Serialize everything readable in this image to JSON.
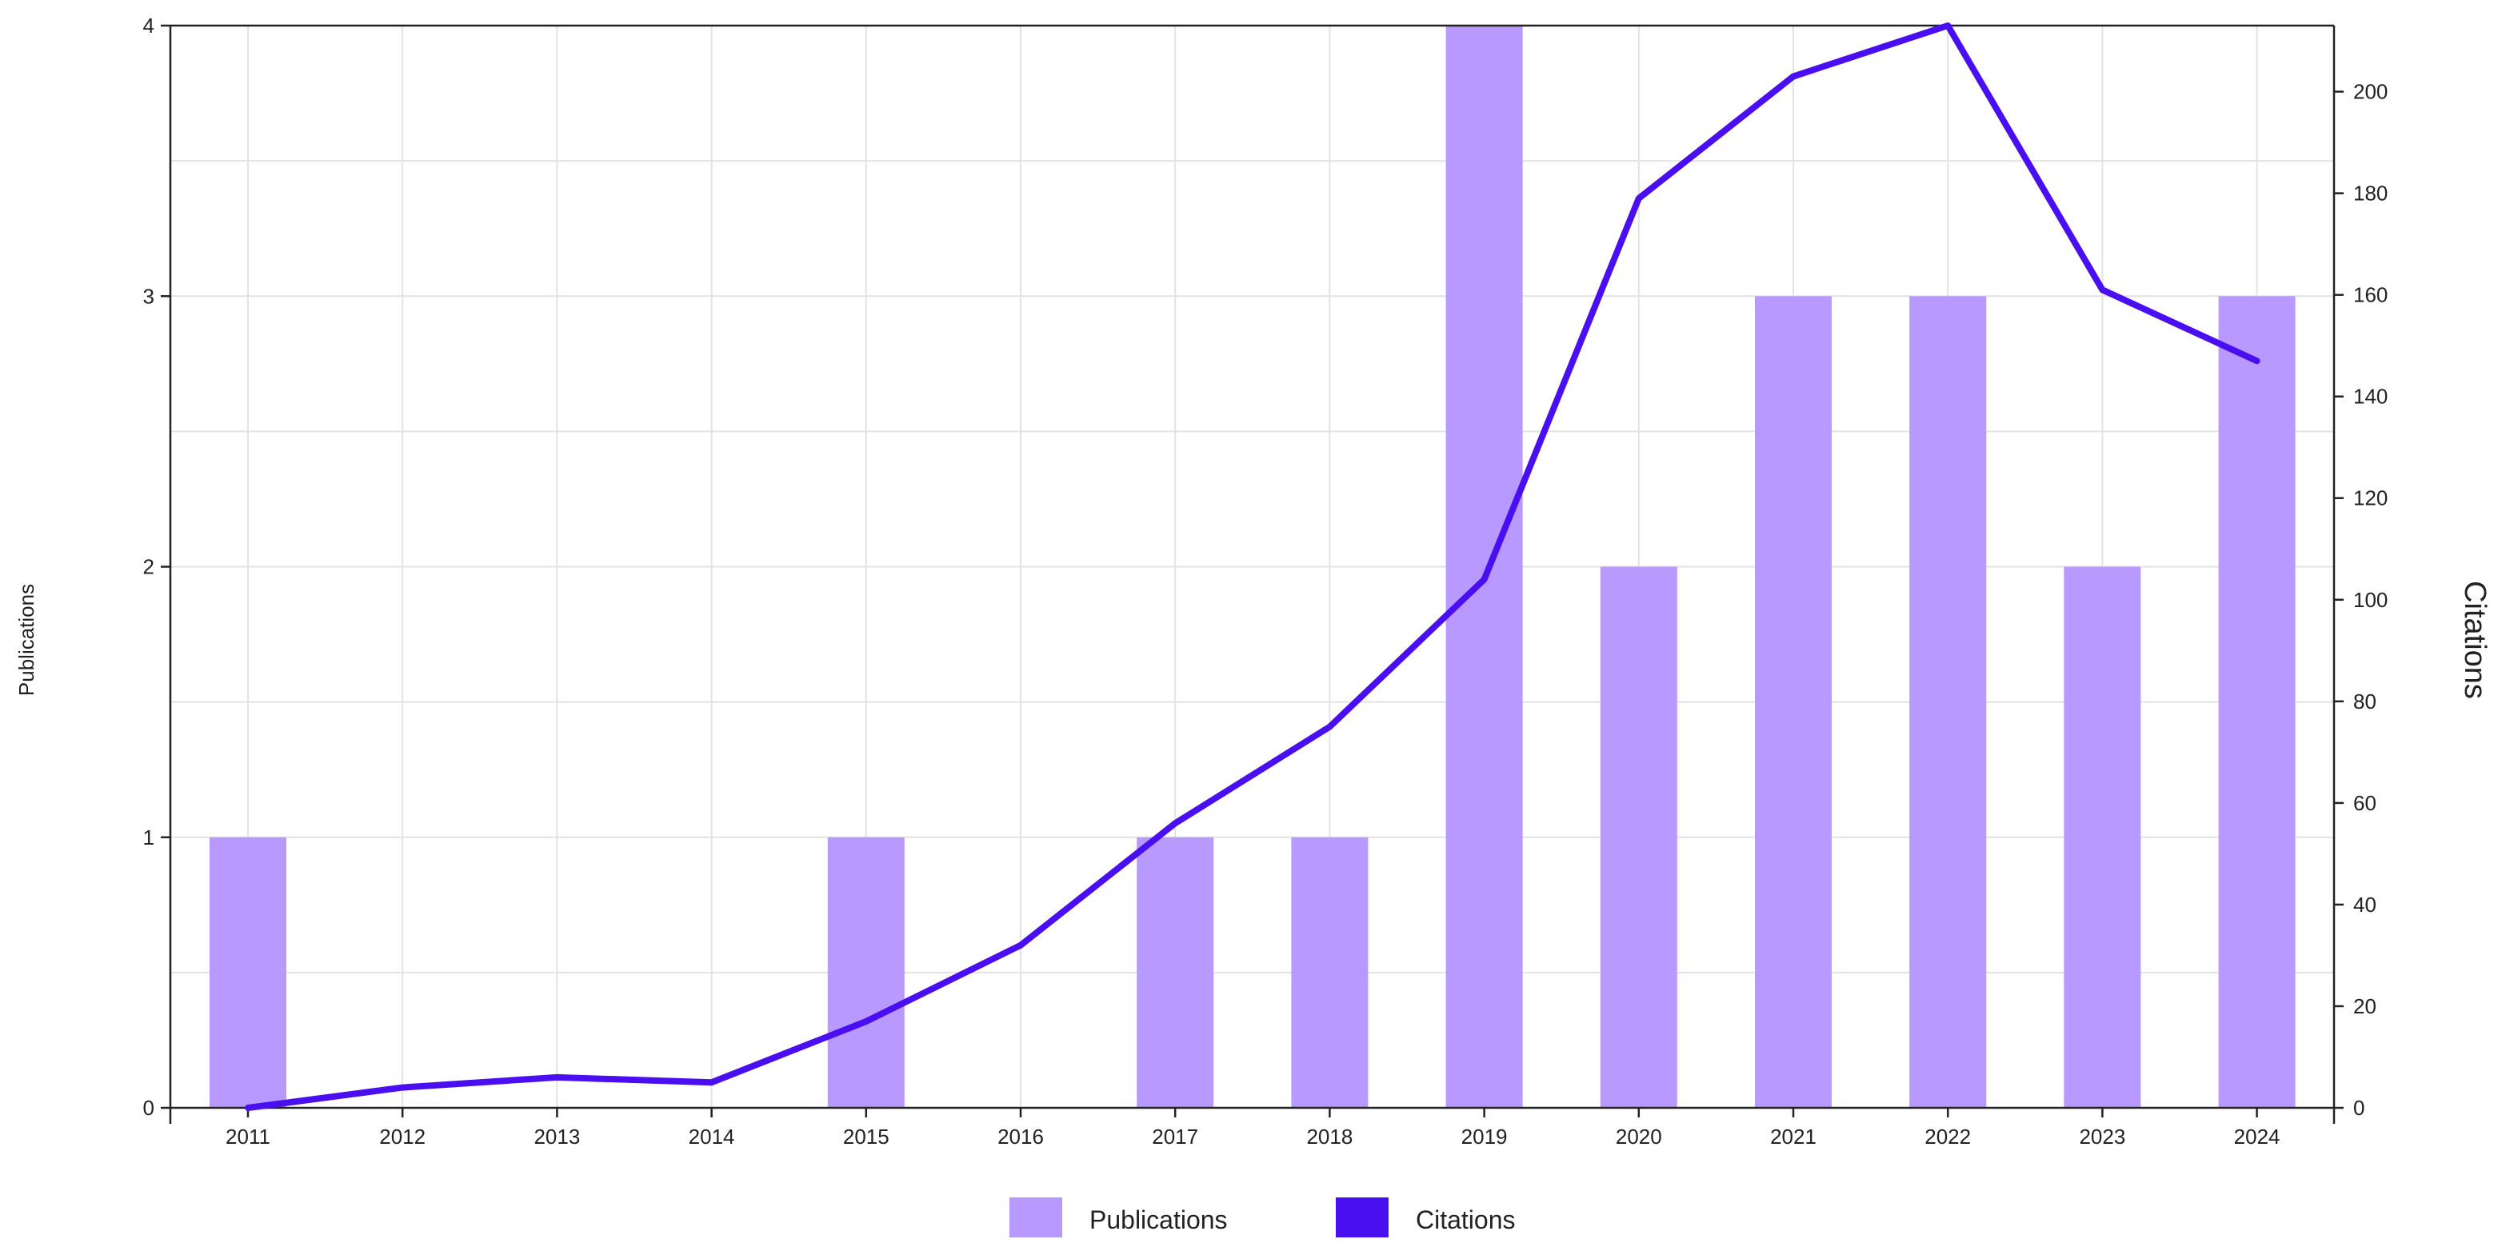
{
  "chart_data": {
    "type": "bar",
    "categories": [
      "2011",
      "2012",
      "2013",
      "2014",
      "2015",
      "2016",
      "2017",
      "2018",
      "2019",
      "2020",
      "2021",
      "2022",
      "2023",
      "2024"
    ],
    "series": [
      {
        "name": "Publications",
        "type": "bar",
        "axis": "left",
        "color": "#b899ff",
        "values": [
          1,
          0,
          0,
          0,
          1,
          0,
          1,
          1,
          4,
          2,
          3,
          3,
          2,
          3
        ]
      },
      {
        "name": "Citations",
        "type": "line",
        "axis": "right",
        "color": "#4a0ff0",
        "values": [
          0,
          4,
          6,
          5,
          17,
          32,
          56,
          75,
          104,
          179,
          203,
          213,
          161,
          147
        ]
      }
    ],
    "ylabel": "Publications",
    "y2label": "Citations",
    "ylim": [
      0,
      4
    ],
    "y2lim": [
      0,
      213
    ],
    "yticks": [
      "0",
      "1",
      "2",
      "3",
      "4"
    ],
    "y2ticks": [
      "0",
      "20",
      "40",
      "60",
      "80",
      "100",
      "120",
      "140",
      "160",
      "180",
      "200"
    ],
    "grid": true,
    "legend_position": "bottom-center"
  }
}
